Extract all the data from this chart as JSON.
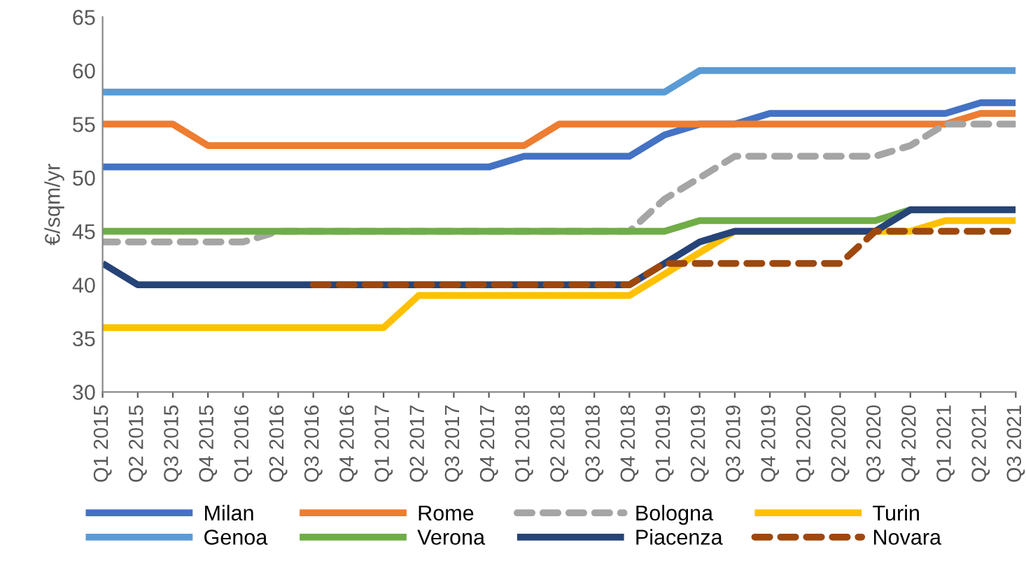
{
  "chart_data": {
    "type": "line",
    "ylabel": "€/sqm/yr",
    "categories": [
      "Q1 2015",
      "Q2 2015",
      "Q3 2015",
      "Q4 2015",
      "Q1 2016",
      "Q2 2016",
      "Q3 2016",
      "Q4 2016",
      "Q1 2017",
      "Q2 2017",
      "Q3 2017",
      "Q4 2017",
      "Q1 2018",
      "Q2 2018",
      "Q3 2018",
      "Q4 2018",
      "Q1 2019",
      "Q2 2019",
      "Q3 2019",
      "Q4 2019",
      "Q1 2020",
      "Q2 2020",
      "Q3 2020",
      "Q4 2020",
      "Q1 2021",
      "Q2 2021",
      "Q3 2021"
    ],
    "ylim": [
      30,
      65
    ],
    "yticks": [
      30,
      35,
      40,
      45,
      50,
      55,
      60,
      65
    ],
    "grid": false,
    "legend": "bottom",
    "marker": "none",
    "series": [
      {
        "name": "Milan",
        "color": "#4472c4",
        "line_style": "solid",
        "values": [
          51,
          51,
          51,
          51,
          51,
          51,
          51,
          51,
          51,
          51,
          51,
          51,
          52,
          52,
          52,
          52,
          54,
          55,
          55,
          56,
          56,
          56,
          56,
          56,
          56,
          57,
          57
        ]
      },
      {
        "name": "Rome",
        "color": "#ed7d31",
        "line_style": "solid",
        "values": [
          55,
          55,
          55,
          53,
          53,
          53,
          53,
          53,
          53,
          53,
          53,
          53,
          53,
          55,
          55,
          55,
          55,
          55,
          55,
          55,
          55,
          55,
          55,
          55,
          55,
          56,
          56
        ]
      },
      {
        "name": "Bologna",
        "color": "#a5a5a5",
        "line_style": "dashed",
        "values": [
          44,
          44,
          44,
          44,
          44,
          45,
          45,
          45,
          45,
          45,
          45,
          45,
          45,
          45,
          45,
          45,
          48,
          50,
          52,
          52,
          52,
          52,
          52,
          53,
          55,
          55,
          55
        ]
      },
      {
        "name": "Turin",
        "color": "#ffc000",
        "line_style": "solid",
        "values": [
          36,
          36,
          36,
          36,
          36,
          36,
          36,
          36,
          36,
          39,
          39,
          39,
          39,
          39,
          39,
          39,
          41,
          43,
          45,
          45,
          45,
          45,
          45,
          45,
          46,
          46,
          46
        ]
      },
      {
        "name": "Genoa",
        "color": "#5b9bd5",
        "line_style": "solid",
        "values": [
          58,
          58,
          58,
          58,
          58,
          58,
          58,
          58,
          58,
          58,
          58,
          58,
          58,
          58,
          58,
          58,
          58,
          60,
          60,
          60,
          60,
          60,
          60,
          60,
          60,
          60,
          60
        ]
      },
      {
        "name": "Verona",
        "color": "#70ad47",
        "line_style": "solid",
        "values": [
          45,
          45,
          45,
          45,
          45,
          45,
          45,
          45,
          45,
          45,
          45,
          45,
          45,
          45,
          45,
          45,
          45,
          46,
          46,
          46,
          46,
          46,
          46,
          47,
          47,
          null,
          null
        ]
      },
      {
        "name": "Piacenza",
        "color": "#264478",
        "line_style": "solid",
        "values": [
          42,
          40,
          40,
          40,
          40,
          40,
          40,
          40,
          40,
          40,
          40,
          40,
          40,
          40,
          40,
          40,
          42,
          44,
          45,
          45,
          45,
          45,
          45,
          47,
          47,
          47,
          47
        ]
      },
      {
        "name": "Novara",
        "color": "#9e480e",
        "line_style": "dashed",
        "values": [
          null,
          null,
          null,
          null,
          null,
          null,
          40,
          40,
          40,
          40,
          40,
          40,
          40,
          40,
          40,
          40,
          42,
          42,
          42,
          42,
          42,
          42,
          45,
          45,
          45,
          45,
          45
        ]
      }
    ]
  }
}
